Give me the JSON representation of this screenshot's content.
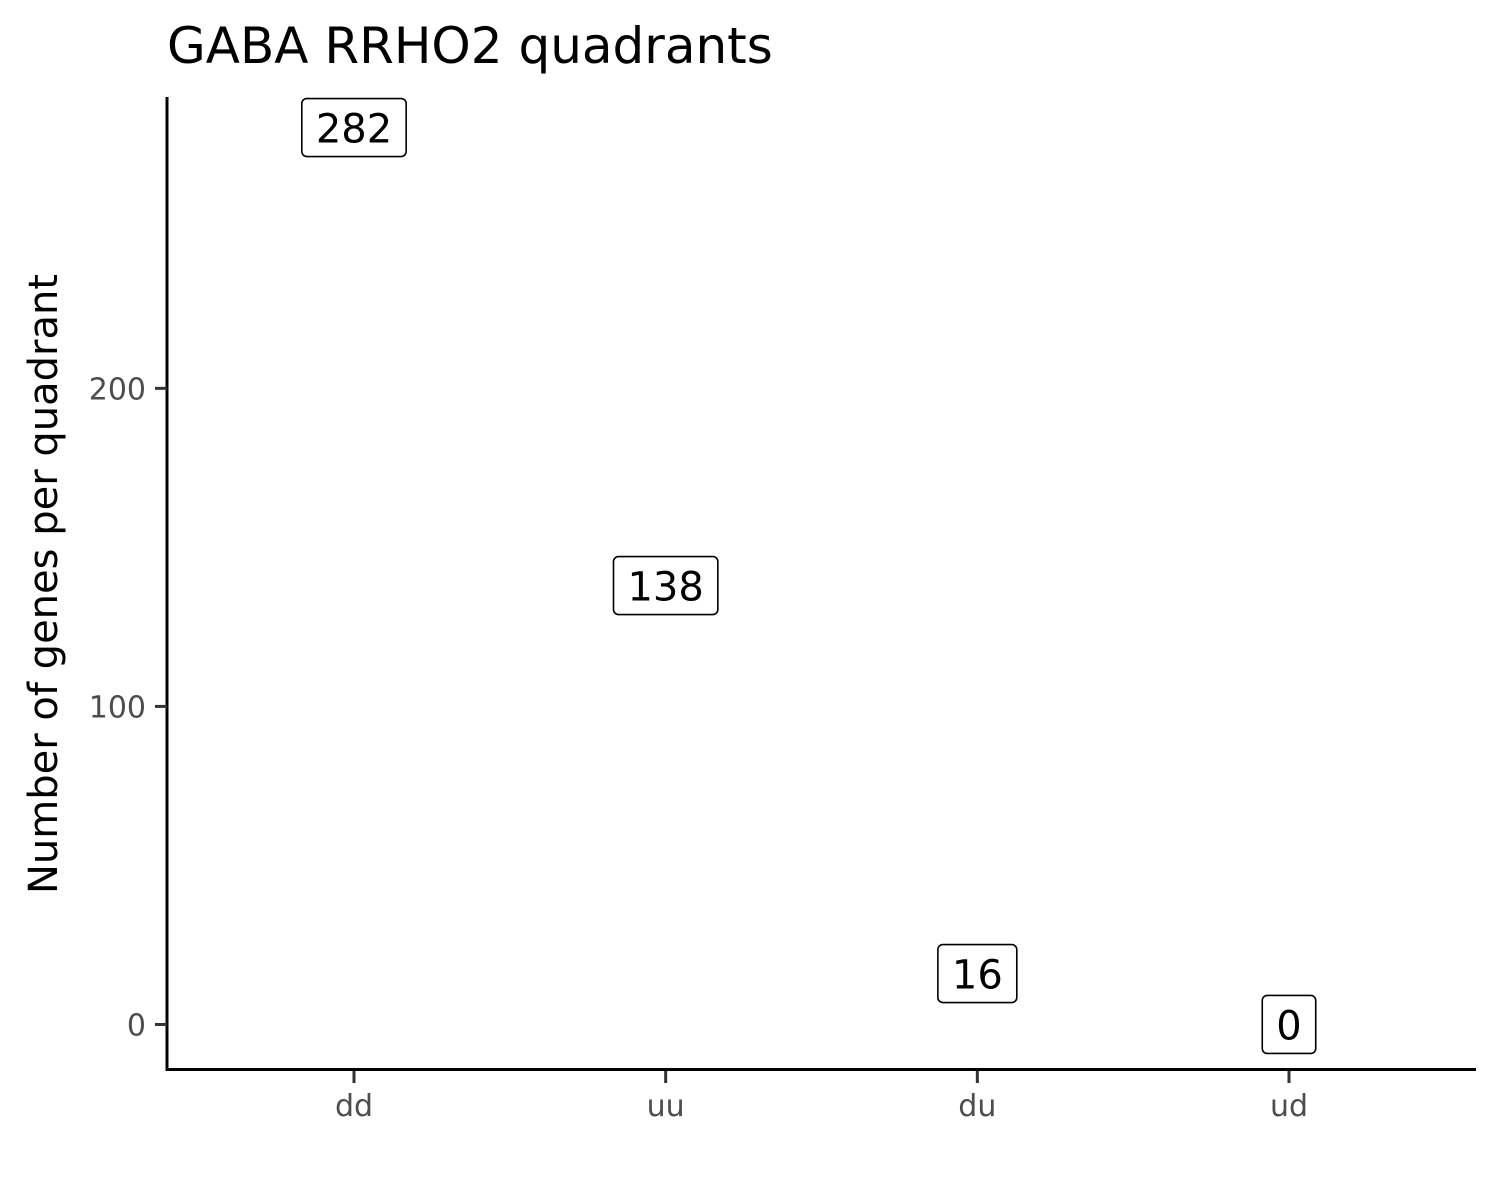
{
  "chart_data": {
    "type": "scatter",
    "title": "GABA RRHO2 quadrants",
    "xlabel": "",
    "ylabel": "Number of genes per quadrant",
    "categories": [
      "dd",
      "uu",
      "du",
      "ud"
    ],
    "values": [
      282,
      138,
      16,
      0
    ],
    "data_labels": [
      "282",
      "138",
      "16",
      "0"
    ],
    "yticks": [
      0,
      100,
      200
    ],
    "ytick_labels": [
      "0",
      "100",
      "200"
    ],
    "ylim": [
      -14,
      296
    ],
    "grid": false,
    "legend": "none"
  }
}
